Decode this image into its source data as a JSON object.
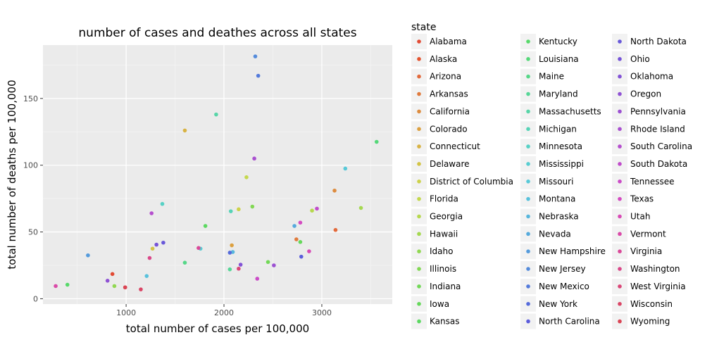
{
  "chart_data": {
    "type": "scatter",
    "title": "number of cases and deathes across all states",
    "xlabel": "total number of cases per 100,000",
    "ylabel": "total number of deaths  per 100,000",
    "xlim": [
      150,
      3720
    ],
    "ylim": [
      -4,
      190
    ],
    "x_ticks": [
      1000,
      2000,
      3000
    ],
    "y_ticks": [
      0,
      50,
      100,
      150
    ],
    "grid": true,
    "legend": {
      "title": "state",
      "placement": "right"
    },
    "series": [
      {
        "name": "Alabama",
        "color": "#e24a33",
        "x": 860,
        "y": 18.5
      },
      {
        "name": "Alaska",
        "color": "#e4542f",
        "x": 990,
        "y": 8.5
      },
      {
        "name": "Arizona",
        "color": "#e26a3c",
        "x": 3140,
        "y": 51.5
      },
      {
        "name": "Arkansas",
        "color": "#e07a3c",
        "x": 2740,
        "y": 44.5
      },
      {
        "name": "California",
        "color": "#dd8c3f",
        "x": 3130,
        "y": 81
      },
      {
        "name": "Colorado",
        "color": "#dca040",
        "x": 2080,
        "y": 40
      },
      {
        "name": "Connecticut",
        "color": "#d8b344",
        "x": 1600,
        "y": 126
      },
      {
        "name": "Delaware",
        "color": "#d3c446",
        "x": 1270,
        "y": 37.5
      },
      {
        "name": "District of Columbia",
        "color": "#cdd24a",
        "x": 2150,
        "y": 67
      },
      {
        "name": "Florida",
        "color": "#c4d84d",
        "x": 2230,
        "y": 91
      },
      {
        "name": "Georgia",
        "color": "#b6d84e",
        "x": 2900,
        "y": 66
      },
      {
        "name": "Hawaii",
        "color": "#a4d84f",
        "x": 3400,
        "y": 68
      },
      {
        "name": "Idaho",
        "color": "#91d852",
        "x": 880,
        "y": 9.5
      },
      {
        "name": "Illinois",
        "color": "#82d854",
        "x": 2290,
        "y": 69
      },
      {
        "name": "Indiana",
        "color": "#72d857",
        "x": 2450,
        "y": 27.5
      },
      {
        "name": "Iowa",
        "color": "#66d85b",
        "x": 2780,
        "y": 42.5
      },
      {
        "name": "Kansas",
        "color": "#5cd861",
        "x": 1810,
        "y": 54.5
      },
      {
        "name": "Kentucky",
        "color": "#57d96a",
        "x": 400,
        "y": 10.5
      },
      {
        "name": "Louisiana",
        "color": "#55d879",
        "x": 3560,
        "y": 117.5
      },
      {
        "name": "Maine",
        "color": "#56d788",
        "x": 1600,
        "y": 27
      },
      {
        "name": "Maryland",
        "color": "#57d697",
        "x": 2060,
        "y": 22
      },
      {
        "name": "Massachusetts",
        "color": "#58d5a8",
        "x": 1920,
        "y": 138
      },
      {
        "name": "Michigan",
        "color": "#57d3b7",
        "x": 2070,
        "y": 65.5
      },
      {
        "name": "Minnesota",
        "color": "#57d1c5",
        "x": 1370,
        "y": 71
      },
      {
        "name": "Mississippi",
        "color": "#58cdd1",
        "x": 1760,
        "y": 37.5
      },
      {
        "name": "Missouri",
        "color": "#58c9d8",
        "x": 3240,
        "y": 97.5
      },
      {
        "name": "Montana",
        "color": "#58c1dc",
        "x": 1210,
        "y": 17
      },
      {
        "name": "Nebraska",
        "color": "#57b6dc",
        "x": 2090,
        "y": 35
      },
      {
        "name": "Nevada",
        "color": "#56aadc",
        "x": 2720,
        "y": 54.5
      },
      {
        "name": "New Hampshire",
        "color": "#559bdc",
        "x": 610,
        "y": 32.5
      },
      {
        "name": "New Jersey",
        "color": "#548bdb",
        "x": 2320,
        "y": 181.5
      },
      {
        "name": "New Mexico",
        "color": "#537adb",
        "x": 2350,
        "y": 167
      },
      {
        "name": "New York",
        "color": "#556bdb",
        "x": 2060,
        "y": 34.5
      },
      {
        "name": "North Carolina",
        "color": "#5b5cdb",
        "x": 2790,
        "y": 31.5
      },
      {
        "name": "North Dakota",
        "color": "#6858d9",
        "x": 1380,
        "y": 42
      },
      {
        "name": "Ohio",
        "color": "#7654d8",
        "x": 1310,
        "y": 40.5
      },
      {
        "name": "Oklahoma",
        "color": "#8353d6",
        "x": 2170,
        "y": 25.5
      },
      {
        "name": "Oregon",
        "color": "#8f52d4",
        "x": 810,
        "y": 13.5
      },
      {
        "name": "Pennsylvania",
        "color": "#9c51d2",
        "x": 2510,
        "y": 25
      },
      {
        "name": "Rhode Island",
        "color": "#a950d0",
        "x": 2310,
        "y": 105
      },
      {
        "name": "South Carolina",
        "color": "#b54fce",
        "x": 1260,
        "y": 64
      },
      {
        "name": "South Dakota",
        "color": "#c04dcb",
        "x": 2950,
        "y": 67.5
      },
      {
        "name": "Tennessee",
        "color": "#cb4cc7",
        "x": 2340,
        "y": 15
      },
      {
        "name": "Texas",
        "color": "#d44bc1",
        "x": 2780,
        "y": 57
      },
      {
        "name": "Utah",
        "color": "#d84bb6",
        "x": 2870,
        "y": 35.5
      },
      {
        "name": "Vermont",
        "color": "#da4aa8",
        "x": 280,
        "y": 9.5
      },
      {
        "name": "Virginia",
        "color": "#da4999",
        "x": 1740,
        "y": 38
      },
      {
        "name": "Washington",
        "color": "#da4889",
        "x": 1240,
        "y": 30.5
      },
      {
        "name": "West Virginia",
        "color": "#da4778",
        "x": 2150,
        "y": 22.5
      },
      {
        "name": "Wisconsin",
        "color": "#da4666",
        "x": 1150,
        "y": 7
      },
      {
        "name": "Wyoming",
        "color": "#da4555",
        "x": 990,
        "y": 8.5
      }
    ]
  }
}
